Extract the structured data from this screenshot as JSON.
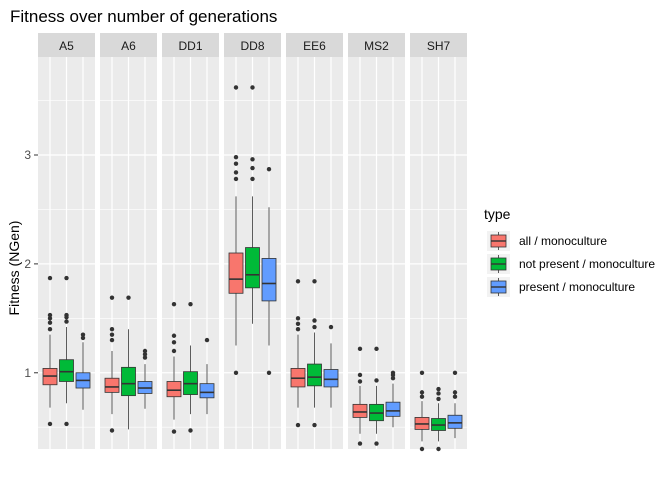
{
  "chart_data": {
    "type": "boxplot",
    "title": "Fitness over number of generations",
    "xlabel": "",
    "ylabel": "Fitness (NGen)",
    "ylim": [
      0.3,
      3.9
    ],
    "yticks": [
      1,
      2,
      3
    ],
    "grid": true,
    "facets": [
      "A5",
      "A6",
      "DD1",
      "DD8",
      "EE6",
      "MS2",
      "SH7"
    ],
    "legend": {
      "title": "type",
      "placement": "right",
      "entries": [
        "all / monoculture",
        "not present / monoculture",
        "present / monoculture"
      ]
    },
    "colors": {
      "all / monoculture": "#F8766D",
      "not present / monoculture": "#00BA38",
      "present / monoculture": "#619CFF",
      "panel_bg": "#EBEBEB",
      "strip_bg": "#D9D9D9",
      "grid": "#FFFFFF"
    },
    "series": [
      {
        "name": "all / monoculture",
        "boxes": [
          {
            "facet": "A5",
            "q1": 0.89,
            "median": 0.97,
            "q3": 1.04,
            "whisker_low": 0.68,
            "whisker_high": 1.35,
            "outliers": [
              0.53,
              1.4,
              1.46,
              1.5,
              1.53,
              1.87
            ]
          },
          {
            "facet": "A6",
            "q1": 0.82,
            "median": 0.87,
            "q3": 0.95,
            "whisker_low": 0.62,
            "whisker_high": 1.2,
            "outliers": [
              0.47,
              1.3,
              1.35,
              1.4,
              1.69
            ]
          },
          {
            "facet": "DD1",
            "q1": 0.78,
            "median": 0.84,
            "q3": 0.92,
            "whisker_low": 0.57,
            "whisker_high": 1.15,
            "outliers": [
              0.46,
              1.2,
              1.28,
              1.34,
              1.63
            ]
          },
          {
            "facet": "DD8",
            "q1": 1.73,
            "median": 1.86,
            "q3": 2.1,
            "whisker_low": 1.25,
            "whisker_high": 2.62,
            "outliers": [
              1.0,
              2.78,
              2.84,
              2.92,
              2.98,
              3.62
            ]
          },
          {
            "facet": "EE6",
            "q1": 0.87,
            "median": 0.95,
            "q3": 1.04,
            "whisker_low": 0.68,
            "whisker_high": 1.35,
            "outliers": [
              0.52,
              1.4,
              1.45,
              1.5,
              1.84
            ]
          },
          {
            "facet": "MS2",
            "q1": 0.59,
            "median": 0.64,
            "q3": 0.71,
            "whisker_low": 0.44,
            "whisker_high": 0.88,
            "outliers": [
              0.35,
              0.92,
              0.98,
              1.22
            ]
          },
          {
            "facet": "SH7",
            "q1": 0.48,
            "median": 0.53,
            "q3": 0.59,
            "whisker_low": 0.37,
            "whisker_high": 0.74,
            "outliers": [
              0.3,
              0.78,
              0.82,
              1.0
            ]
          }
        ]
      },
      {
        "name": "not present / monoculture",
        "boxes": [
          {
            "facet": "A5",
            "q1": 0.92,
            "median": 1.01,
            "q3": 1.12,
            "whisker_low": 0.72,
            "whisker_high": 1.42,
            "outliers": [
              0.53,
              1.47,
              1.51,
              1.53,
              1.87
            ]
          },
          {
            "facet": "A6",
            "q1": 0.79,
            "median": 0.9,
            "q3": 1.05,
            "whisker_low": 0.48,
            "whisker_high": 1.4,
            "outliers": [
              1.69
            ]
          },
          {
            "facet": "DD1",
            "q1": 0.8,
            "median": 0.9,
            "q3": 1.01,
            "whisker_low": 0.62,
            "whisker_high": 1.25,
            "outliers": [
              0.47,
              1.63
            ]
          },
          {
            "facet": "DD8",
            "q1": 1.78,
            "median": 1.9,
            "q3": 2.15,
            "whisker_low": 1.45,
            "whisker_high": 2.62,
            "outliers": [
              2.78,
              2.88,
              2.96,
              3.62
            ]
          },
          {
            "facet": "EE6",
            "q1": 0.88,
            "median": 0.96,
            "q3": 1.08,
            "whisker_low": 0.68,
            "whisker_high": 1.37,
            "outliers": [
              0.52,
              1.42,
              1.48,
              1.84
            ]
          },
          {
            "facet": "MS2",
            "q1": 0.56,
            "median": 0.63,
            "q3": 0.71,
            "whisker_low": 0.44,
            "whisker_high": 0.88,
            "outliers": [
              0.35,
              0.93,
              1.22
            ]
          },
          {
            "facet": "SH7",
            "q1": 0.47,
            "median": 0.52,
            "q3": 0.58,
            "whisker_low": 0.37,
            "whisker_high": 0.72,
            "outliers": [
              0.3,
              0.76,
              0.81,
              0.85
            ]
          }
        ]
      },
      {
        "name": "present / monoculture",
        "boxes": [
          {
            "facet": "A5",
            "q1": 0.86,
            "median": 0.93,
            "q3": 1.0,
            "whisker_low": 0.66,
            "whisker_high": 1.28,
            "outliers": [
              1.32,
              1.35
            ]
          },
          {
            "facet": "A6",
            "q1": 0.81,
            "median": 0.86,
            "q3": 0.92,
            "whisker_low": 0.67,
            "whisker_high": 1.08,
            "outliers": [
              1.14,
              1.17,
              1.2
            ]
          },
          {
            "facet": "DD1",
            "q1": 0.77,
            "median": 0.82,
            "q3": 0.9,
            "whisker_low": 0.62,
            "whisker_high": 1.08,
            "outliers": [
              1.3
            ]
          },
          {
            "facet": "DD8",
            "q1": 1.66,
            "median": 1.82,
            "q3": 2.05,
            "whisker_low": 1.25,
            "whisker_high": 2.52,
            "outliers": [
              1.0,
              2.87
            ]
          },
          {
            "facet": "EE6",
            "q1": 0.87,
            "median": 0.94,
            "q3": 1.03,
            "whisker_low": 0.68,
            "whisker_high": 1.27,
            "outliers": [
              1.42
            ]
          },
          {
            "facet": "MS2",
            "q1": 0.6,
            "median": 0.65,
            "q3": 0.73,
            "whisker_low": 0.5,
            "whisker_high": 0.9,
            "outliers": [
              0.95,
              0.98,
              1.0
            ]
          },
          {
            "facet": "SH7",
            "q1": 0.49,
            "median": 0.54,
            "q3": 0.61,
            "whisker_low": 0.4,
            "whisker_high": 0.72,
            "outliers": [
              0.78,
              0.82,
              1.0
            ]
          }
        ]
      }
    ]
  }
}
